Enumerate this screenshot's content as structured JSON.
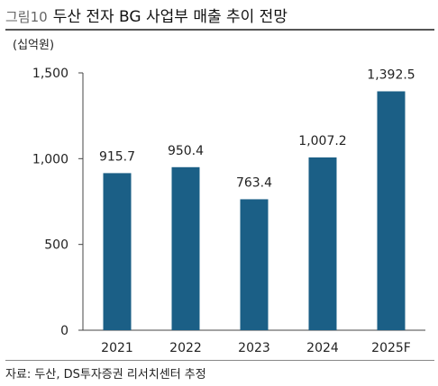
{
  "header": {
    "figure_label": "그림10",
    "title": "두산 전자 BG 사업부 매출 추이 전망"
  },
  "source": "자료: 두산, DS투자증권 리서치센터 추정",
  "chart_data": {
    "type": "bar",
    "unit_label": "(십억원)",
    "categories": [
      "2021",
      "2022",
      "2023",
      "2024",
      "2025F"
    ],
    "values": [
      915.7,
      950.4,
      763.4,
      1007.2,
      1392.5
    ],
    "value_labels": [
      "915.7",
      "950.4",
      "763.4",
      "1,007.2",
      "1,392.5"
    ],
    "ylim": [
      0,
      1500
    ],
    "yticks": [
      0,
      500,
      1000,
      1500
    ],
    "ytick_labels": [
      "0",
      "500",
      "1,000",
      "1,500"
    ],
    "bar_color": "#1b5f86",
    "axis_color": "#444444",
    "grid": false,
    "legend": "none"
  }
}
